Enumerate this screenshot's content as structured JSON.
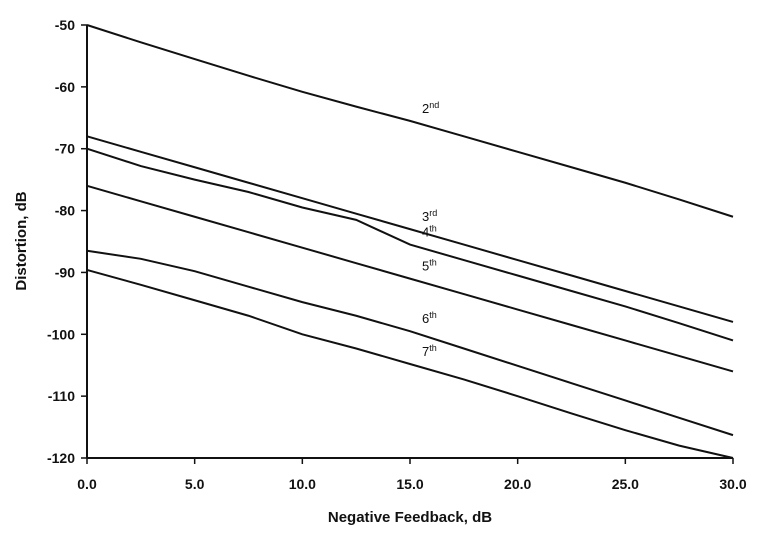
{
  "chart_data": {
    "type": "line",
    "x_label": "Negative Feedback, dB",
    "y_label": "Distortion, dB",
    "x": [
      0,
      2.5,
      5,
      7.5,
      10,
      12.5,
      15,
      17.5,
      20,
      22.5,
      25,
      27.5,
      30
    ],
    "series": [
      {
        "name": "2nd",
        "color": "#111111",
        "values": [
          -50,
          -52.8,
          -55.5,
          -58.2,
          -60.8,
          -63.2,
          -65.5,
          -68,
          -70.5,
          -73,
          -75.5,
          -78.2,
          -81
        ]
      },
      {
        "name": "3rd",
        "color": "#111111",
        "values": [
          -68,
          -70.5,
          -73,
          -75.5,
          -78,
          -80.5,
          -83,
          -85.5,
          -88,
          -90.5,
          -93,
          -95.5,
          -98
        ]
      },
      {
        "name": "4th",
        "color": "#111111",
        "values": [
          -70,
          -72.8,
          -75,
          -77,
          -79.5,
          -81.5,
          -85.5,
          -88,
          -90.5,
          -93,
          -95.5,
          -98.2,
          -101
        ]
      },
      {
        "name": "5th",
        "color": "#111111",
        "values": [
          -76,
          -78.5,
          -81,
          -83.5,
          -86,
          -88.5,
          -91,
          -93.5,
          -96,
          -98.5,
          -101,
          -103.5,
          -106
        ]
      },
      {
        "name": "6th",
        "color": "#111111",
        "values": [
          -86.5,
          -87.8,
          -89.8,
          -92.3,
          -94.8,
          -97,
          -99.5,
          -102.3,
          -105.1,
          -107.9,
          -110.7,
          -113.5,
          -116.3
        ]
      },
      {
        "name": "7th",
        "color": "#111111",
        "values": [
          -89.6,
          -92,
          -94.5,
          -97,
          -100,
          -102.3,
          -104.8,
          -107.3,
          -110,
          -112.8,
          -115.5,
          -118,
          -120
        ]
      }
    ],
    "xlim": [
      0,
      30
    ],
    "xticks": [
      {
        "value": 0,
        "label": "0.0"
      },
      {
        "value": 5,
        "label": "5.0"
      },
      {
        "value": 10,
        "label": "10.0"
      },
      {
        "value": 15,
        "label": "15.0"
      },
      {
        "value": 20,
        "label": "20.0"
      },
      {
        "value": 25,
        "label": "25.0"
      },
      {
        "value": 30,
        "label": "30.0"
      }
    ],
    "ylim": [
      -120,
      -50
    ],
    "yticks": [
      -50,
      -60,
      -70,
      -80,
      -90,
      -100,
      -110,
      -120
    ],
    "grid": false
  }
}
